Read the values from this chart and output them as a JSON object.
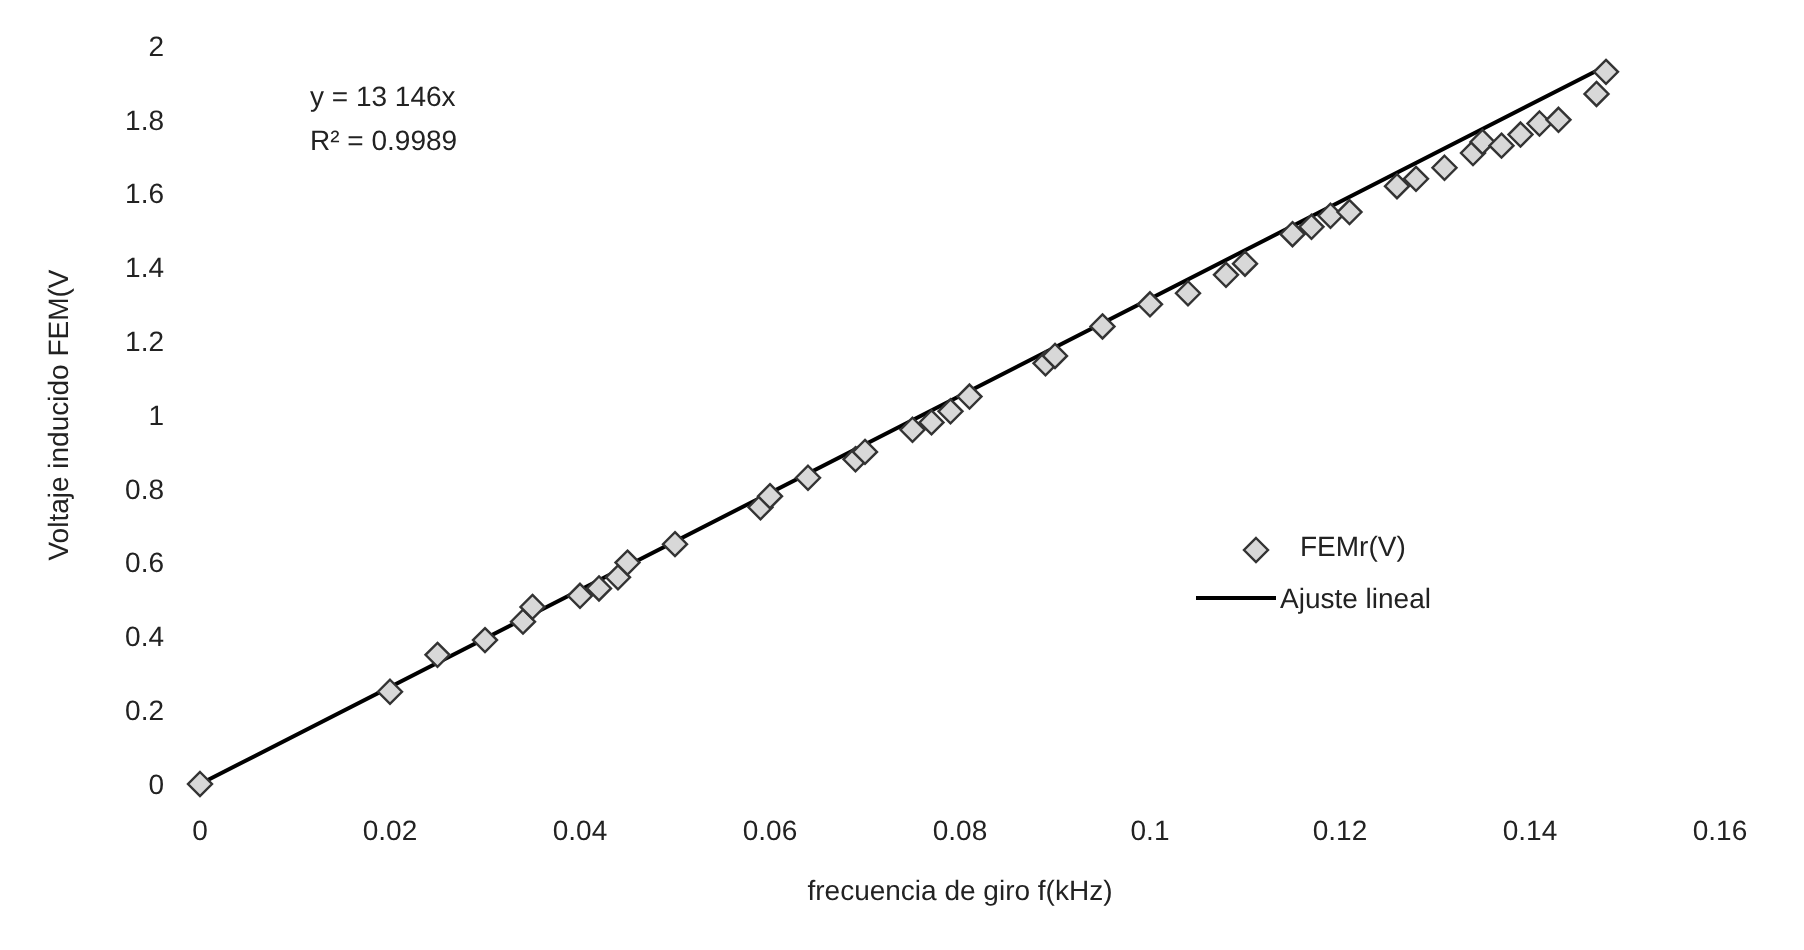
{
  "chart_data": {
    "type": "scatter",
    "xlabel": "frecuencia de giro f(kHz)",
    "ylabel": "Voltaje inducido FEM(V",
    "annotations": [
      "y = 13 146x",
      "R² = 0.9989"
    ],
    "xlim": [
      0,
      0.16
    ],
    "ylim": [
      0,
      2
    ],
    "xticks": [
      0,
      0.02,
      0.04,
      0.06,
      0.08,
      0.1,
      0.12,
      0.14,
      0.16
    ],
    "yticks": [
      0,
      0.2,
      0.4,
      0.6,
      0.8,
      1,
      1.2,
      1.4,
      1.6,
      1.8,
      2
    ],
    "grid": false,
    "legend": "right",
    "series": [
      {
        "name": "FEMr(V)",
        "color": "#333333",
        "marker": "diamond",
        "x": [
          0,
          0.02,
          0.025,
          0.03,
          0.034,
          0.035,
          0.04,
          0.042,
          0.044,
          0.045,
          0.05,
          0.059,
          0.06,
          0.064,
          0.069,
          0.07,
          0.075,
          0.077,
          0.079,
          0.081,
          0.089,
          0.09,
          0.095,
          0.1,
          0.104,
          0.108,
          0.11,
          0.115,
          0.117,
          0.119,
          0.121,
          0.126,
          0.128,
          0.131,
          0.134,
          0.135,
          0.137,
          0.139,
          0.141,
          0.143,
          0.147,
          0.148
        ],
        "values": [
          0,
          0.25,
          0.35,
          0.39,
          0.44,
          0.48,
          0.51,
          0.53,
          0.56,
          0.6,
          0.65,
          0.75,
          0.78,
          0.83,
          0.88,
          0.9,
          0.96,
          0.98,
          1.01,
          1.05,
          1.14,
          1.16,
          1.24,
          1.3,
          1.33,
          1.38,
          1.41,
          1.49,
          1.51,
          1.54,
          1.55,
          1.62,
          1.64,
          1.67,
          1.71,
          1.74,
          1.73,
          1.76,
          1.79,
          1.8,
          1.87,
          1.93
        ]
      },
      {
        "name": "Ajuste lineal",
        "type": "line",
        "color": "#000000",
        "line_style": "solid",
        "x": [
          0,
          0.148
        ],
        "values": [
          0,
          1.946
        ]
      }
    ]
  }
}
